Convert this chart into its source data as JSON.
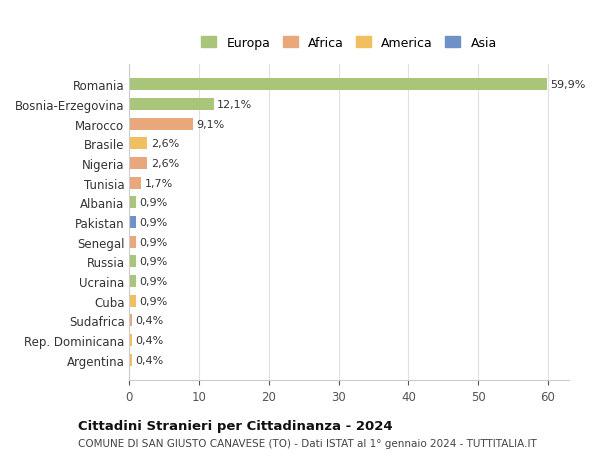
{
  "categories": [
    "Romania",
    "Bosnia-Erzegovina",
    "Marocco",
    "Brasile",
    "Nigeria",
    "Tunisia",
    "Albania",
    "Pakistan",
    "Senegal",
    "Russia",
    "Ucraina",
    "Cuba",
    "Sudafrica",
    "Rep. Dominicana",
    "Argentina"
  ],
  "values": [
    59.9,
    12.1,
    9.1,
    2.6,
    2.6,
    1.7,
    0.9,
    0.9,
    0.9,
    0.9,
    0.9,
    0.9,
    0.4,
    0.4,
    0.4
  ],
  "labels": [
    "59,9%",
    "12,1%",
    "9,1%",
    "2,6%",
    "2,6%",
    "1,7%",
    "0,9%",
    "0,9%",
    "0,9%",
    "0,9%",
    "0,9%",
    "0,9%",
    "0,4%",
    "0,4%",
    "0,4%"
  ],
  "continents": [
    "Europa",
    "Europa",
    "Africa",
    "America",
    "Africa",
    "Africa",
    "Europa",
    "Asia",
    "Africa",
    "Europa",
    "Europa",
    "America",
    "Africa",
    "America",
    "America"
  ],
  "colors": {
    "Europa": "#a8c57a",
    "Africa": "#e8a87c",
    "America": "#f0c060",
    "Asia": "#7090c8"
  },
  "legend_order": [
    "Europa",
    "Africa",
    "America",
    "Asia"
  ],
  "title": "Cittadini Stranieri per Cittadinanza - 2024",
  "subtitle": "COMUNE DI SAN GIUSTO CANAVESE (TO) - Dati ISTAT al 1° gennaio 2024 - TUTTITALIA.IT",
  "xlim": [
    0,
    63
  ],
  "xticks": [
    0,
    10,
    20,
    30,
    40,
    50,
    60
  ],
  "background_color": "#ffffff",
  "grid_color": "#e0e0e0",
  "bar_height": 0.6
}
